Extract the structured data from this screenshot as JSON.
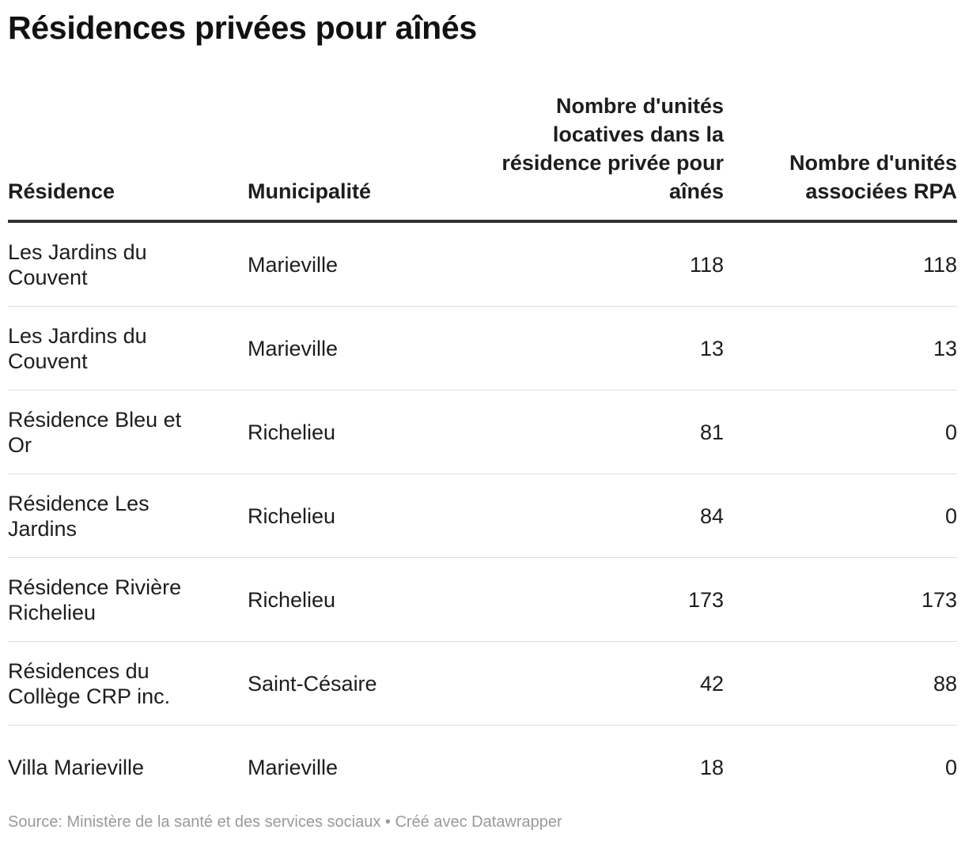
{
  "title": "Résidences privées pour aînés",
  "chart_data": {
    "type": "table",
    "columns": [
      "Résidence",
      "Municipalité",
      "Nombre d'unités locatives dans la résidence privée pour aînés",
      "Nombre d'unités associées RPA"
    ],
    "rows": [
      {
        "residence": "Les Jardins du Couvent",
        "municipalite": "Marieville",
        "unites_locatives": 118,
        "unites_rpa": 118
      },
      {
        "residence": "Les Jardins du Couvent",
        "municipalite": "Marieville",
        "unites_locatives": 13,
        "unites_rpa": 13
      },
      {
        "residence": "Résidence Bleu et Or",
        "municipalite": "Richelieu",
        "unites_locatives": 81,
        "unites_rpa": 0
      },
      {
        "residence": "Résidence Les Jardins",
        "municipalite": "Richelieu",
        "unites_locatives": 84,
        "unites_rpa": 0
      },
      {
        "residence": "Résidence Rivière Richelieu",
        "municipalite": "Richelieu",
        "unites_locatives": 173,
        "unites_rpa": 173
      },
      {
        "residence": "Résidences du Collège CRP inc.",
        "municipalite": "Saint-Césaire",
        "unites_locatives": 42,
        "unites_rpa": 88
      },
      {
        "residence": "Villa Marieville",
        "municipalite": "Marieville",
        "unites_locatives": 18,
        "unites_rpa": 0
      }
    ]
  },
  "footer": {
    "text": "Source: Ministère de la santé et des services sociaux • Créé avec Datawrapper"
  },
  "colors": {
    "text": "#1d1d1d",
    "header_rule": "#333333",
    "row_rule": "#dddddd",
    "footer_text": "#9a9a9a"
  }
}
